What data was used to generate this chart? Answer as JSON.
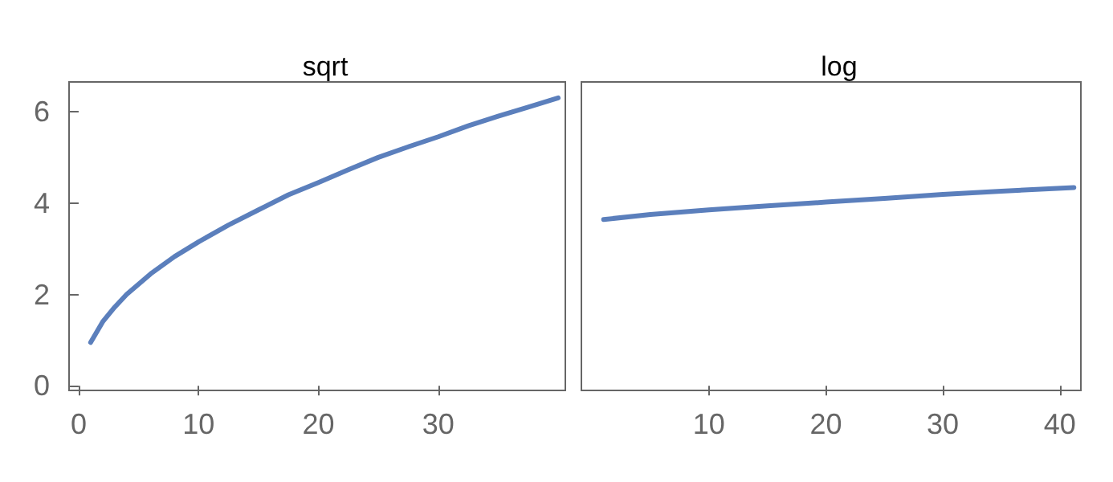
{
  "chart_data": [
    {
      "type": "line",
      "title": "sqrt",
      "x": [
        1,
        2,
        3,
        4,
        6,
        8,
        10,
        12.5,
        15,
        17.5,
        20,
        22.5,
        25,
        27.5,
        30,
        32.5,
        35,
        37.5,
        40
      ],
      "values": [
        0.95,
        1.4,
        1.72,
        2.0,
        2.45,
        2.83,
        3.15,
        3.52,
        3.85,
        4.18,
        4.45,
        4.73,
        5.0,
        5.23,
        5.45,
        5.69,
        5.9,
        6.1,
        6.3
      ],
      "color": "#5b7fbc",
      "xlim": [
        -0.8,
        40.6
      ],
      "ylim": [
        -0.1,
        6.65
      ],
      "xticks": [
        0,
        10,
        20,
        30
      ],
      "yticks": [
        0,
        2,
        4,
        6
      ],
      "grid": false,
      "marker": "none",
      "line_style": "solid"
    },
    {
      "type": "line",
      "title": "log",
      "x": [
        1,
        5,
        10,
        15,
        20,
        25,
        30,
        35,
        41.2
      ],
      "values": [
        3.64,
        3.75,
        3.85,
        3.94,
        4.02,
        4.1,
        4.19,
        4.26,
        4.34
      ],
      "color": "#5b7fbc",
      "xlim": [
        -0.9,
        41.8
      ],
      "ylim": [
        -0.1,
        6.65
      ],
      "xticks": [
        10,
        20,
        30,
        40
      ],
      "tick_labels": "x",
      "grid": false,
      "marker": "none",
      "line_style": "solid"
    }
  ]
}
